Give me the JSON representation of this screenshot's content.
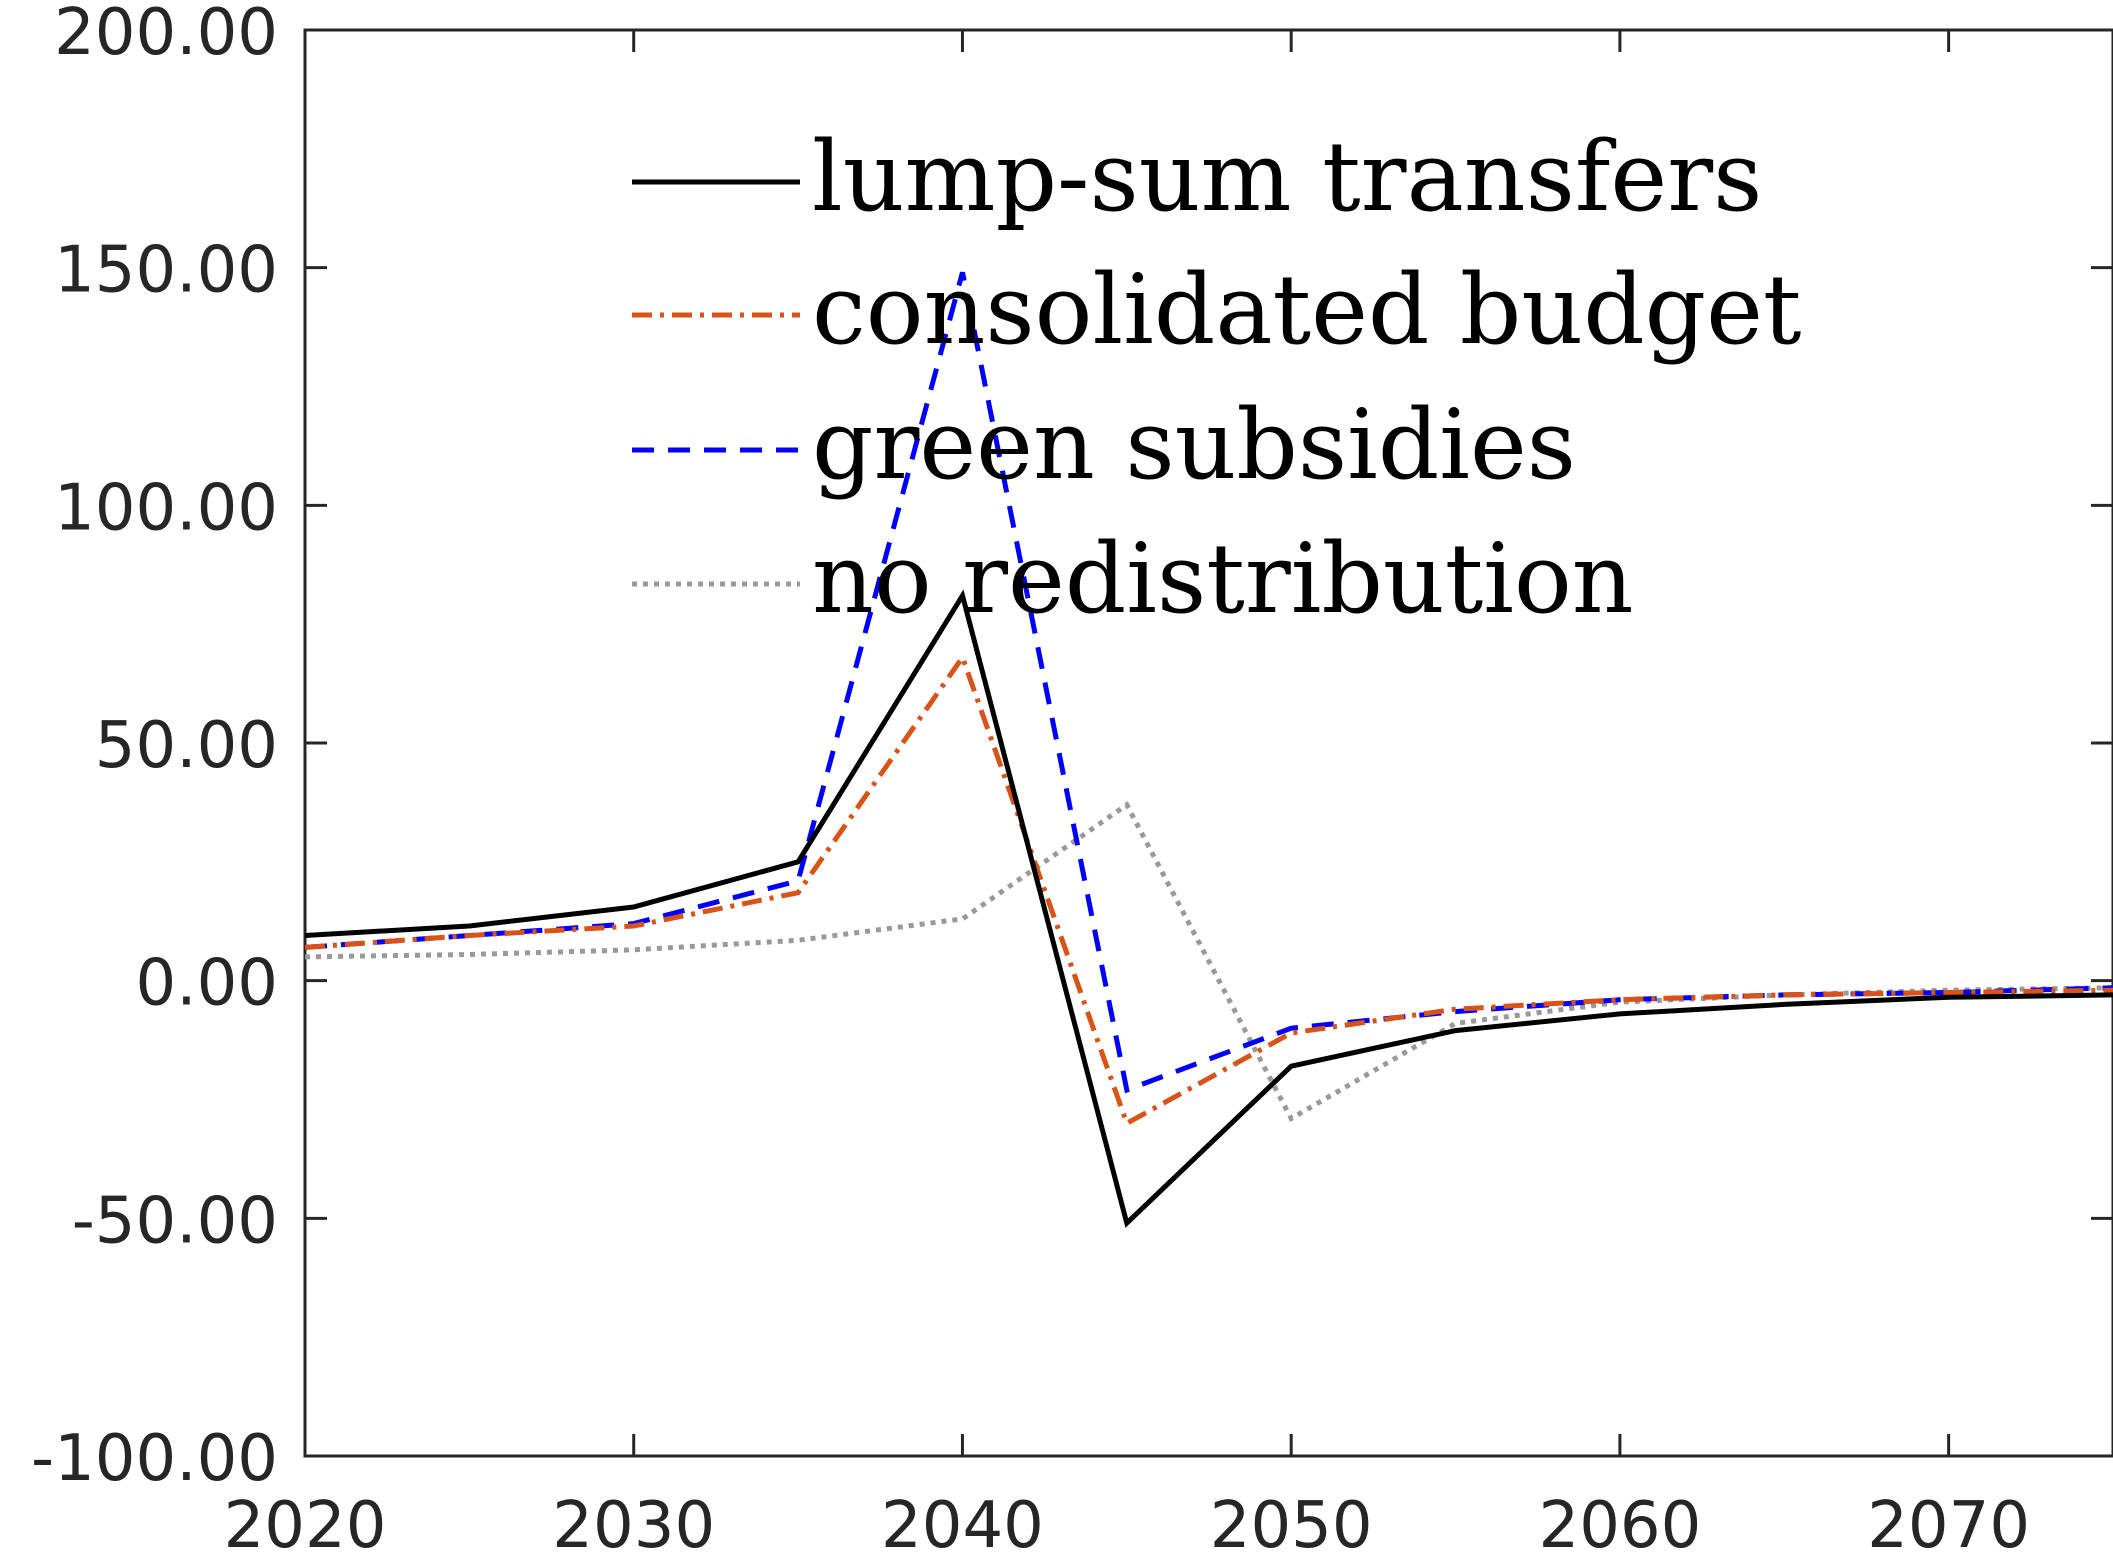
{
  "chart_data": {
    "type": "line",
    "title": "",
    "xlabel": "",
    "ylabel": "",
    "xlim": [
      2020,
      2075
    ],
    "ylim": [
      -100,
      200
    ],
    "x_ticks": [
      2020,
      2030,
      2040,
      2050,
      2060,
      2070
    ],
    "x_tick_labels": [
      "2020",
      "2030",
      "2040",
      "2050",
      "2060",
      "2070"
    ],
    "y_ticks": [
      -100,
      -50,
      0,
      50,
      100,
      150,
      200
    ],
    "y_tick_labels": [
      "-100.00",
      "-50.00",
      "0.00",
      "50.00",
      "100.00",
      "150.00",
      "200.00"
    ],
    "grid": false,
    "legend_position": "top-center",
    "x": [
      2020,
      2025,
      2030,
      2035,
      2040,
      2045,
      2050,
      2055,
      2060,
      2065,
      2070,
      2075
    ],
    "series": [
      {
        "name": "lump-sum transfers",
        "color": "#000000",
        "style": "solid",
        "values": [
          9.5,
          11.5,
          15.5,
          25,
          81,
          -51,
          -18,
          -10.5,
          -7,
          -5,
          -3.5,
          -3
        ]
      },
      {
        "name": "consolidated budget",
        "color": "#D95319",
        "style": "dashdot",
        "values": [
          7,
          9.5,
          11.5,
          18.5,
          68,
          -30,
          -11,
          -6,
          -4,
          -3,
          -2.5,
          -2
        ]
      },
      {
        "name": "green subsidies",
        "color": "#0000FF",
        "style": "dashed",
        "values": [
          7,
          9.5,
          12,
          21,
          149,
          -23,
          -10,
          -6.5,
          -4,
          -3,
          -2.5,
          -1.5
        ]
      },
      {
        "name": "no redistribution",
        "color": "#999999",
        "style": "dotted",
        "values": [
          5,
          5.5,
          6.5,
          8.5,
          13,
          37,
          -29,
          -9,
          -4.5,
          -3,
          -2,
          -1.5
        ]
      }
    ]
  }
}
